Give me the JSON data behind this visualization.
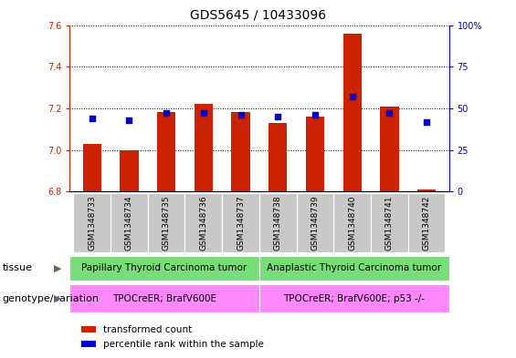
{
  "title": "GDS5645 / 10433096",
  "samples": [
    "GSM1348733",
    "GSM1348734",
    "GSM1348735",
    "GSM1348736",
    "GSM1348737",
    "GSM1348738",
    "GSM1348739",
    "GSM1348740",
    "GSM1348741",
    "GSM1348742"
  ],
  "transformed_count": [
    7.03,
    7.0,
    7.18,
    7.22,
    7.18,
    7.13,
    7.16,
    7.56,
    7.21,
    6.81
  ],
  "percentile_rank": [
    44,
    43,
    47,
    47,
    46,
    45,
    46,
    57,
    47,
    42
  ],
  "bar_bottom": 6.8,
  "ylim_left": [
    6.8,
    7.6
  ],
  "ylim_right": [
    0,
    100
  ],
  "yticks_left": [
    6.8,
    7.0,
    7.2,
    7.4,
    7.6
  ],
  "yticks_right": [
    0,
    25,
    50,
    75,
    100
  ],
  "bar_color": "#cc2200",
  "dot_color": "#0000cc",
  "tissue_groups": [
    {
      "label": "Papillary Thyroid Carcinoma tumor",
      "start": 0,
      "end": 5,
      "color": "#77dd77"
    },
    {
      "label": "Anaplastic Thyroid Carcinoma tumor",
      "start": 5,
      "end": 10,
      "color": "#77dd77"
    }
  ],
  "genotype_groups": [
    {
      "label": "TPOCreER; BrafV600E",
      "start": 0,
      "end": 5,
      "color": "#ff88ff"
    },
    {
      "label": "TPOCreER; BrafV600E; p53 -/-",
      "start": 5,
      "end": 10,
      "color": "#ff88ff"
    }
  ],
  "tissue_label": "tissue",
  "genotype_label": "genotype/variation",
  "legend_items": [
    {
      "color": "#cc2200",
      "label": "transformed count"
    },
    {
      "color": "#0000cc",
      "label": "percentile rank within the sample"
    }
  ],
  "bar_width": 0.5,
  "dot_size": 18,
  "title_fontsize": 10,
  "tick_fontsize": 7,
  "sample_fontsize": 6.5,
  "annotation_fontsize": 7.5,
  "label_fontsize": 8,
  "xtick_box_color": "#c8c8c8",
  "spine_color": "#888888"
}
